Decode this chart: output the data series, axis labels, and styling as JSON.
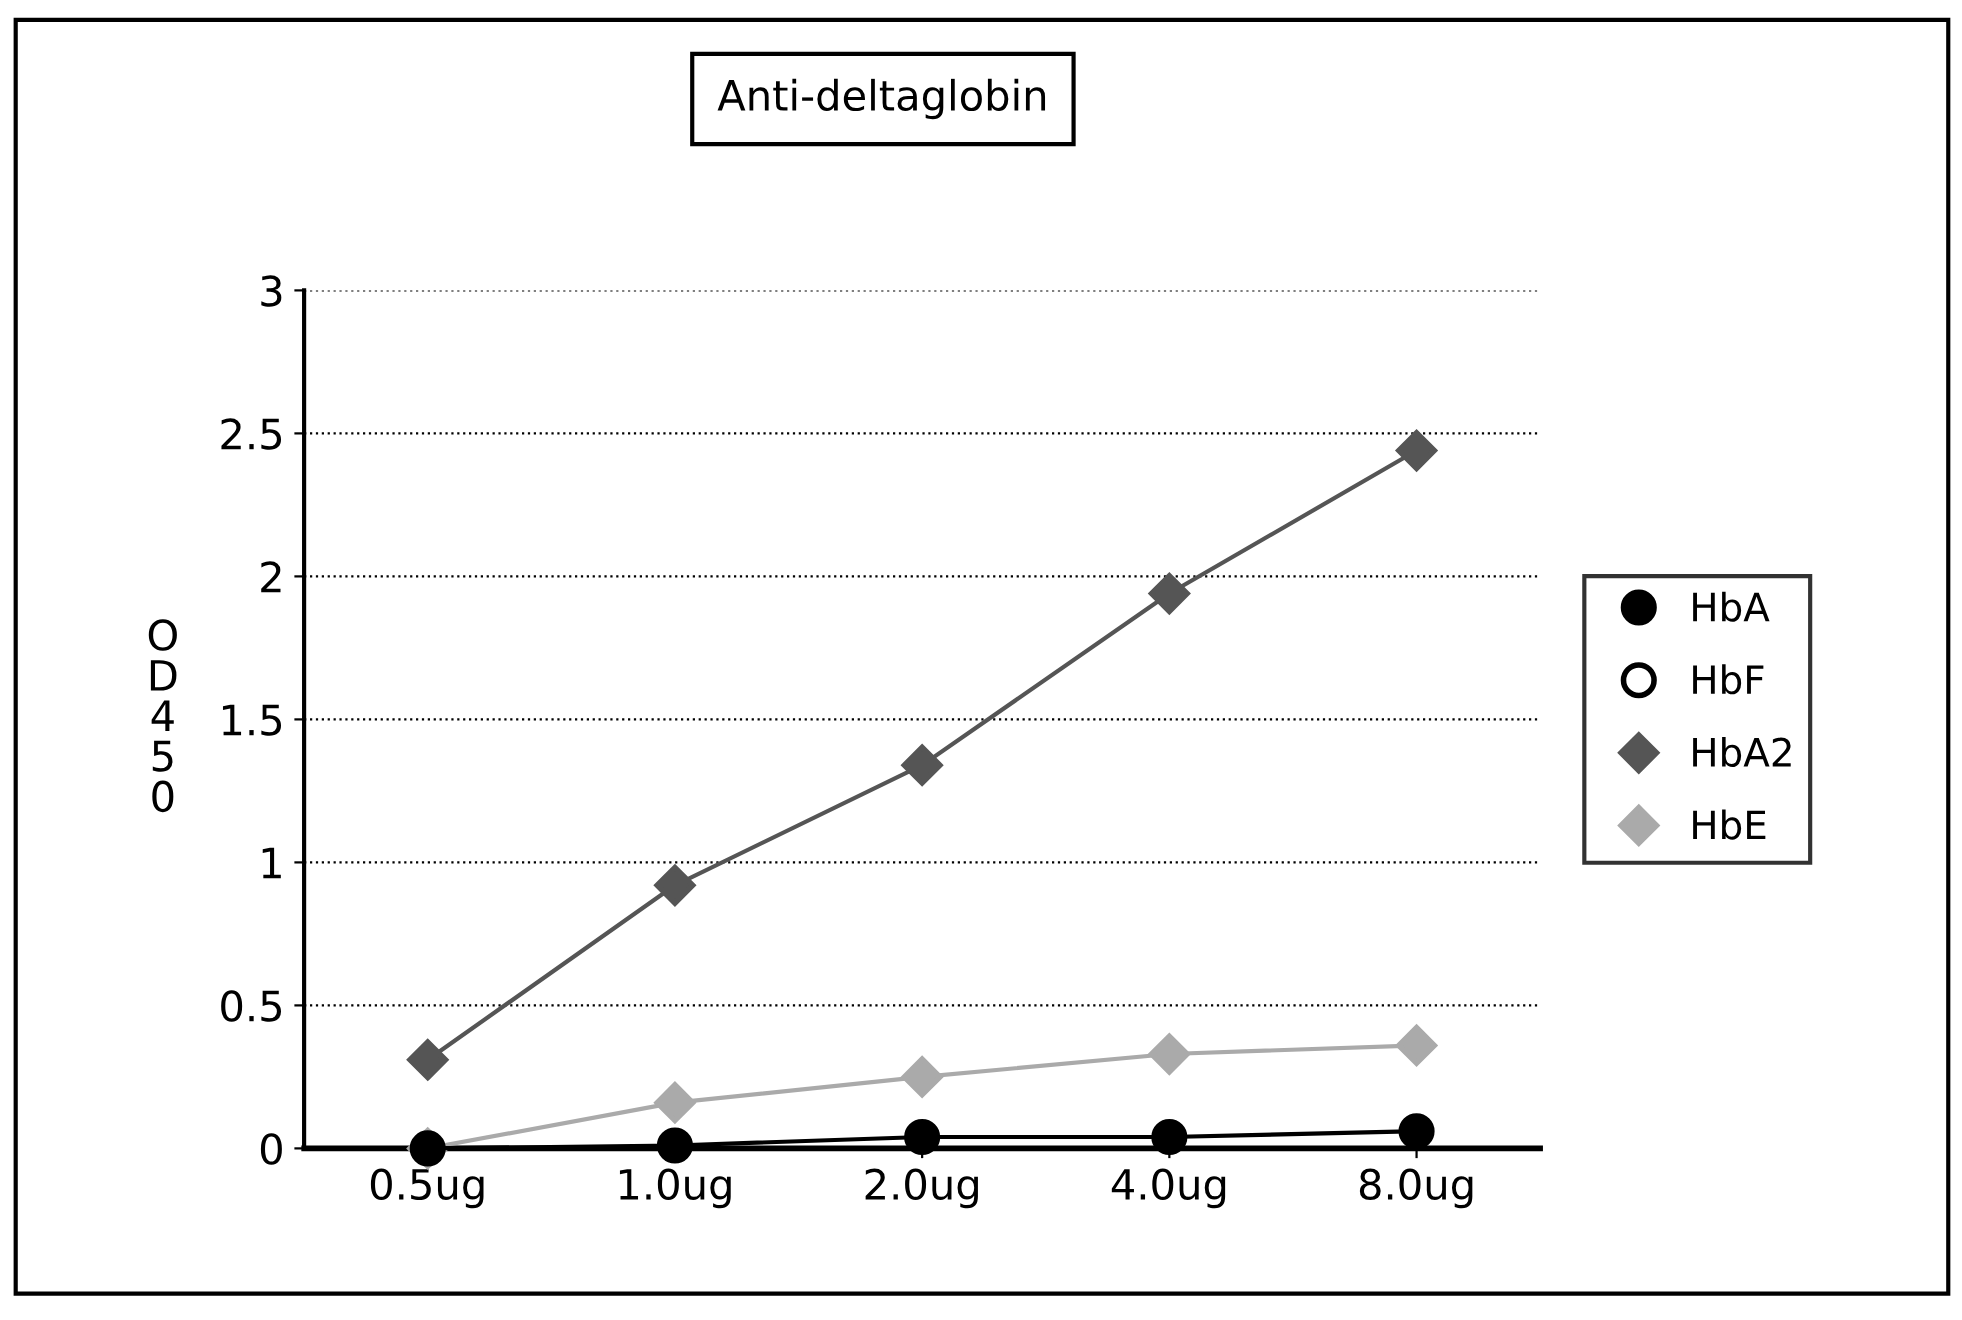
{
  "chart_data": {
    "type": "line",
    "title": "Anti-deltaglobin",
    "ylabel": "OD450",
    "categories": [
      "0.5ug",
      "1.0ug",
      "2.0ug",
      "4.0ug",
      "8.0ug"
    ],
    "series": [
      {
        "name": "HbA",
        "color": "#000000",
        "marker": "circle",
        "values": [
          0,
          0.01,
          0.04,
          0.04,
          0.06
        ]
      },
      {
        "name": "HbF",
        "color": "#ffffff",
        "marker": "circle",
        "values": [
          null,
          null,
          null,
          null,
          null
        ]
      },
      {
        "name": "HbA2",
        "color": "#555555",
        "marker": "diamond",
        "values": [
          0.31,
          0.92,
          1.34,
          1.94,
          2.44
        ]
      },
      {
        "name": "HbE",
        "color": "#aaaaaa",
        "marker": "diamond",
        "values": [
          0,
          0.16,
          0.25,
          0.33,
          0.36
        ]
      }
    ],
    "ylim": [
      0,
      3
    ],
    "yticks": [
      0,
      0.5,
      1,
      1.5,
      2,
      2.5,
      3
    ],
    "grid": "y",
    "legend": "right"
  }
}
